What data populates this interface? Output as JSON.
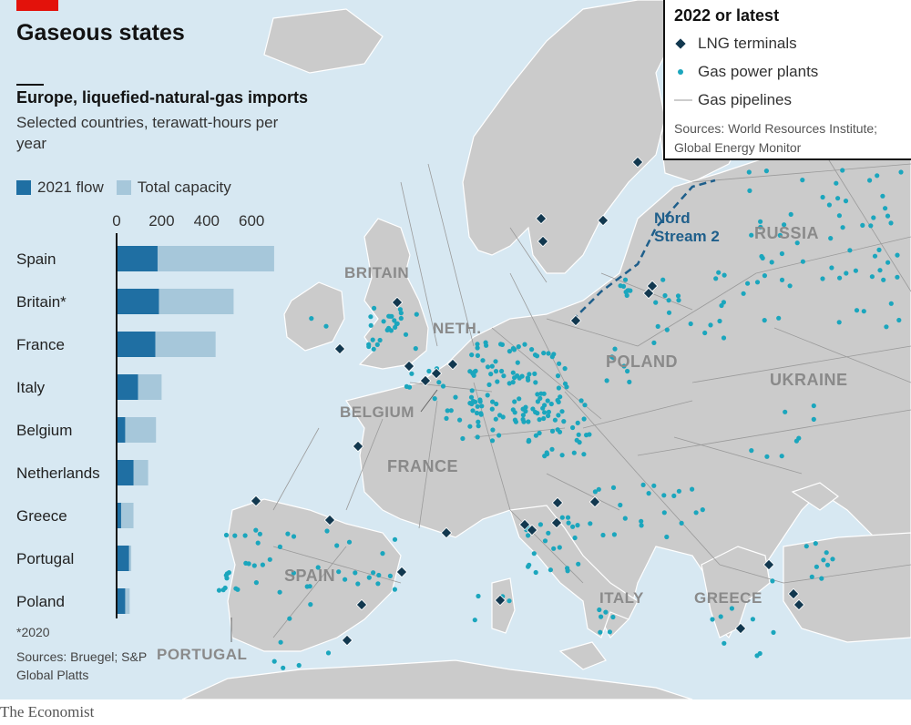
{
  "headline": "Gaseous states",
  "chart_data": {
    "type": "bar",
    "orientation": "horizontal",
    "title": "Europe, liquefied-natural-gas imports",
    "subtitle": "Selected countries, terawatt-hours per year",
    "categories": [
      "Spain",
      "Britain*",
      "France",
      "Italy",
      "Belgium",
      "Netherlands",
      "Greece",
      "Portugal",
      "Poland"
    ],
    "series": [
      {
        "name": "2021 flow",
        "values": [
          182,
          188,
          172,
          95,
          38,
          75,
          20,
          55,
          38
        ],
        "color": "#1f6fa3"
      },
      {
        "name": "Total capacity",
        "values": [
          700,
          520,
          440,
          200,
          175,
          140,
          75,
          65,
          58
        ],
        "color": "#a6c7da"
      }
    ],
    "xticks": [
      0,
      200,
      400,
      600
    ],
    "xlim": [
      0,
      700
    ],
    "footnote": "*2020",
    "source": "Sources: Bruegel; S&P Global Platts"
  },
  "map": {
    "legend_title": "2022 or latest",
    "legend_items": [
      {
        "label": "LNG terminals",
        "symbol": "diamond",
        "color": "#12384f"
      },
      {
        "label": "Gas power plants",
        "symbol": "dot",
        "color": "#1ba6bd"
      },
      {
        "label": "Gas pipelines",
        "symbol": "line",
        "color": "#9a9a9a"
      }
    ],
    "source": "Sources: World Resources Institute; Global Energy Monitor",
    "labels": {
      "britain": "BRITAIN",
      "neth": "NETH.",
      "belgium": "BELGIUM",
      "france": "FRANCE",
      "spain": "SPAIN",
      "portugal": "PORTUGAL",
      "italy": "ITALY",
      "greece": "GREECE",
      "poland": "POLAND",
      "ukraine": "UKRAINE",
      "russia": "RUSSIA",
      "nord1": "Nord",
      "nord2": "Stream 2"
    },
    "colors": {
      "sea": "#d7e8f2",
      "land": "#cbcbcb",
      "pipeline": "#9a9a9a",
      "plant": "#1ba6bd",
      "terminal": "#12384f",
      "nord": "#1f5f8b"
    }
  },
  "brand": "The Economist"
}
